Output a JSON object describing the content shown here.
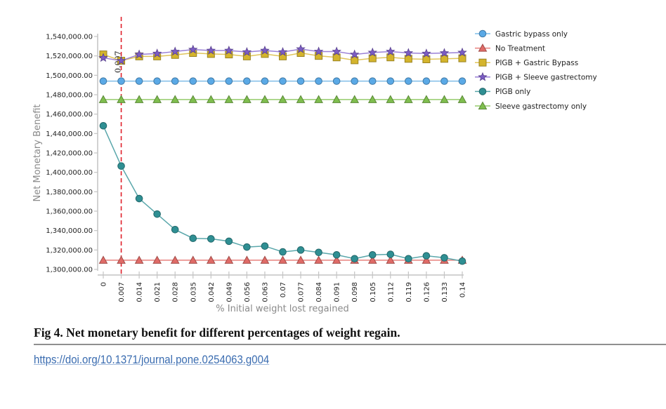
{
  "chart_data": {
    "type": "line",
    "title": "",
    "xlabel": "% Initial weight lost regained",
    "ylabel": "Net Monetary Benefit",
    "x": [
      0,
      0.007,
      0.014,
      0.021,
      0.028,
      0.035,
      0.042,
      0.049,
      0.056,
      0.063,
      0.07,
      0.077,
      0.084,
      0.091,
      0.098,
      0.105,
      0.112,
      0.119,
      0.126,
      0.133,
      0.14
    ],
    "x_tick_labels": [
      "0",
      "0.007",
      "0.014",
      "0.021",
      "0.028",
      "0.035",
      "0.042",
      "0.049",
      "0.056",
      "0.063",
      "0.07",
      "0.077",
      "0.084",
      "0.091",
      "0.098",
      "0.105",
      "0.112",
      "0.119",
      "0.126",
      "0.133",
      "0.14"
    ],
    "ylim": [
      1300000,
      1540000
    ],
    "y_ticks": [
      1300000,
      1320000,
      1340000,
      1360000,
      1380000,
      1400000,
      1420000,
      1440000,
      1460000,
      1480000,
      1500000,
      1520000,
      1540000
    ],
    "y_tick_labels": [
      "1,300,000.00",
      "1,320,000.00",
      "1,340,000.00",
      "1,360,000.00",
      "1,380,000.00",
      "1,400,000.00",
      "1,420,000.00",
      "1,440,000.00",
      "1,460,000.00",
      "1,480,000.00",
      "1,500,000.00",
      "1,520,000.00",
      "1,540,000.00"
    ],
    "grid": false,
    "legend_position": "top-right",
    "reference_line": {
      "x": 0.007,
      "label": "0.007",
      "color": "#e0202a",
      "style": "dashed"
    },
    "series": [
      {
        "name": "Gastric bypass only",
        "marker": "circle",
        "color": "#5aa9e6",
        "line_color": "#7fbde9",
        "values": [
          1494000,
          1494000,
          1494000,
          1494000,
          1494000,
          1494000,
          1494000,
          1494000,
          1494000,
          1494000,
          1494000,
          1494000,
          1494000,
          1494000,
          1494000,
          1494000,
          1494000,
          1494000,
          1494000,
          1494000,
          1494000
        ]
      },
      {
        "name": "No Treatment",
        "marker": "triangle",
        "color": "#e06b67",
        "line_color": "#e8807c",
        "values": [
          1309500,
          1309500,
          1309500,
          1309500,
          1309500,
          1309500,
          1309500,
          1309500,
          1309500,
          1309500,
          1309500,
          1309500,
          1309500,
          1309500,
          1309500,
          1309500,
          1309500,
          1309500,
          1309500,
          1309500,
          1309500
        ]
      },
      {
        "name": "PIGB + Gastric Bypass",
        "marker": "square",
        "color": "#d4b42c",
        "line_color": "#e0c55a",
        "values": [
          1521500,
          1515000,
          1519500,
          1519500,
          1521000,
          1523000,
          1522000,
          1521500,
          1519500,
          1522000,
          1519500,
          1523000,
          1520000,
          1518500,
          1515500,
          1517500,
          1518500,
          1517000,
          1516500,
          1517000,
          1517500
        ]
      },
      {
        "name": "PIGB + Sleeve gastrectomy",
        "marker": "star",
        "color": "#7b5cc4",
        "line_color": "#9a80d6",
        "values": [
          1518000,
          1515000,
          1521500,
          1522500,
          1524500,
          1526500,
          1525500,
          1525500,
          1524000,
          1525500,
          1524000,
          1527000,
          1524500,
          1524500,
          1521500,
          1523500,
          1524500,
          1523000,
          1522500,
          1523000,
          1523500
        ]
      },
      {
        "name": "PIGB only",
        "marker": "circle",
        "color": "#2f8f93",
        "line_color": "#5aa7ab",
        "values": [
          1448000,
          1406500,
          1373000,
          1357000,
          1341000,
          1332000,
          1331500,
          1329000,
          1323000,
          1324000,
          1318000,
          1320000,
          1317500,
          1315000,
          1311000,
          1315000,
          1315500,
          1311000,
          1314000,
          1312000,
          1308500
        ]
      },
      {
        "name": "Sleeve gastrectomy only",
        "marker": "triangle",
        "color": "#7fbe4e",
        "line_color": "#95cb6b",
        "values": [
          1475000,
          1475000,
          1475000,
          1475000,
          1475000,
          1475000,
          1475000,
          1475000,
          1475000,
          1475000,
          1475000,
          1475000,
          1475000,
          1475000,
          1475000,
          1475000,
          1475000,
          1475000,
          1475000,
          1475000,
          1475000
        ]
      }
    ]
  },
  "figure": {
    "caption": "Fig 4.  Net monetary benefit for different percentages of weight regain.",
    "doi_link": "https://doi.org/10.1371/journal.pone.0254063.g004"
  }
}
